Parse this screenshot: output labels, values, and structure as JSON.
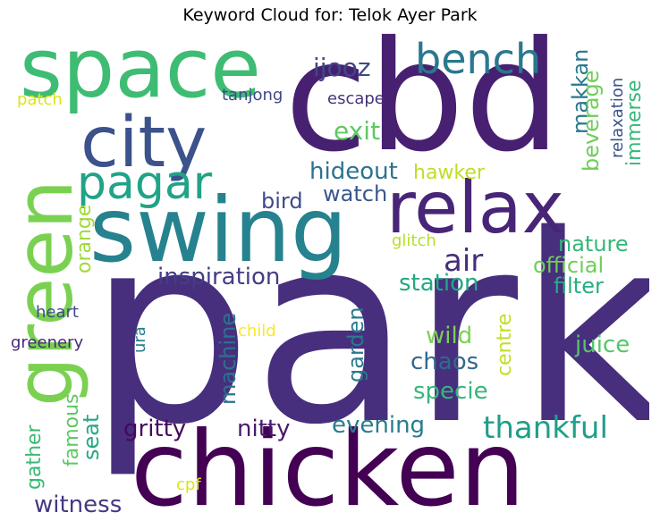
{
  "chart_data": {
    "type": "wordcloud",
    "title": "Keyword Cloud for: Telok Ayer Park",
    "colormap": "viridis",
    "background": "#ffffff",
    "words": [
      {
        "text": "park",
        "color": "#472f7d"
      },
      {
        "text": "chicken",
        "color": "#440154"
      },
      {
        "text": "cbd",
        "color": "#482071"
      },
      {
        "text": "swing",
        "color": "#26828e"
      },
      {
        "text": "space",
        "color": "#3fbc73"
      },
      {
        "text": "green",
        "color": "#7ad151"
      },
      {
        "text": "city",
        "color": "#3b528b"
      },
      {
        "text": "relax",
        "color": "#482576"
      },
      {
        "text": "bench",
        "color": "#2a788e"
      },
      {
        "text": "pagar",
        "color": "#20a386"
      },
      {
        "text": "thankful",
        "color": "#1f9e89"
      },
      {
        "text": "air",
        "color": "#472c7a"
      },
      {
        "text": "ijooz",
        "color": "#3e4989"
      },
      {
        "text": "exit",
        "color": "#5ec962"
      },
      {
        "text": "hideout",
        "color": "#2c728e"
      },
      {
        "text": "hawker",
        "color": "#bddf26"
      },
      {
        "text": "watch",
        "color": "#39568c"
      },
      {
        "text": "bird",
        "color": "#3e4a89"
      },
      {
        "text": "nature",
        "color": "#35b779"
      },
      {
        "text": "official",
        "color": "#6ece58"
      },
      {
        "text": "inspiration",
        "color": "#433e85"
      },
      {
        "text": "station",
        "color": "#22a884"
      },
      {
        "text": "filter",
        "color": "#28ae80"
      },
      {
        "text": "juice",
        "color": "#54c568"
      },
      {
        "text": "chaos",
        "color": "#31688e"
      },
      {
        "text": "wild",
        "color": "#7ad151"
      },
      {
        "text": "specie",
        "color": "#35b779"
      },
      {
        "text": "evening",
        "color": "#287c8e"
      },
      {
        "text": "gritty",
        "color": "#46085c"
      },
      {
        "text": "nitty",
        "color": "#481a6c"
      },
      {
        "text": "witness",
        "color": "#443983"
      },
      {
        "text": "makkan",
        "color": "#2a788e"
      },
      {
        "text": "beverage",
        "color": "#6ece58"
      },
      {
        "text": "immerse",
        "color": "#35b779"
      },
      {
        "text": "relaxation",
        "color": "#3b528b"
      },
      {
        "text": "tanjong",
        "color": "#3e4989"
      },
      {
        "text": "escape",
        "color": "#46327e"
      },
      {
        "text": "patch",
        "color": "#dde318"
      },
      {
        "text": "orange",
        "color": "#a0da39"
      },
      {
        "text": "glitch",
        "color": "#b5de2b"
      },
      {
        "text": "heart",
        "color": "#3e4a89"
      },
      {
        "text": "greenery",
        "color": "#472a7a"
      },
      {
        "text": "machine",
        "color": "#2c728e"
      },
      {
        "text": "child",
        "color": "#fde725"
      },
      {
        "text": "garden",
        "color": "#297a8e"
      },
      {
        "text": "centre",
        "color": "#c2df23"
      },
      {
        "text": "ura",
        "color": "#287d8e"
      },
      {
        "text": "famous",
        "color": "#5ec962"
      },
      {
        "text": "seat",
        "color": "#22a884"
      },
      {
        "text": "gather",
        "color": "#3aba76"
      },
      {
        "text": "cpf",
        "color": "#dde318"
      }
    ]
  }
}
